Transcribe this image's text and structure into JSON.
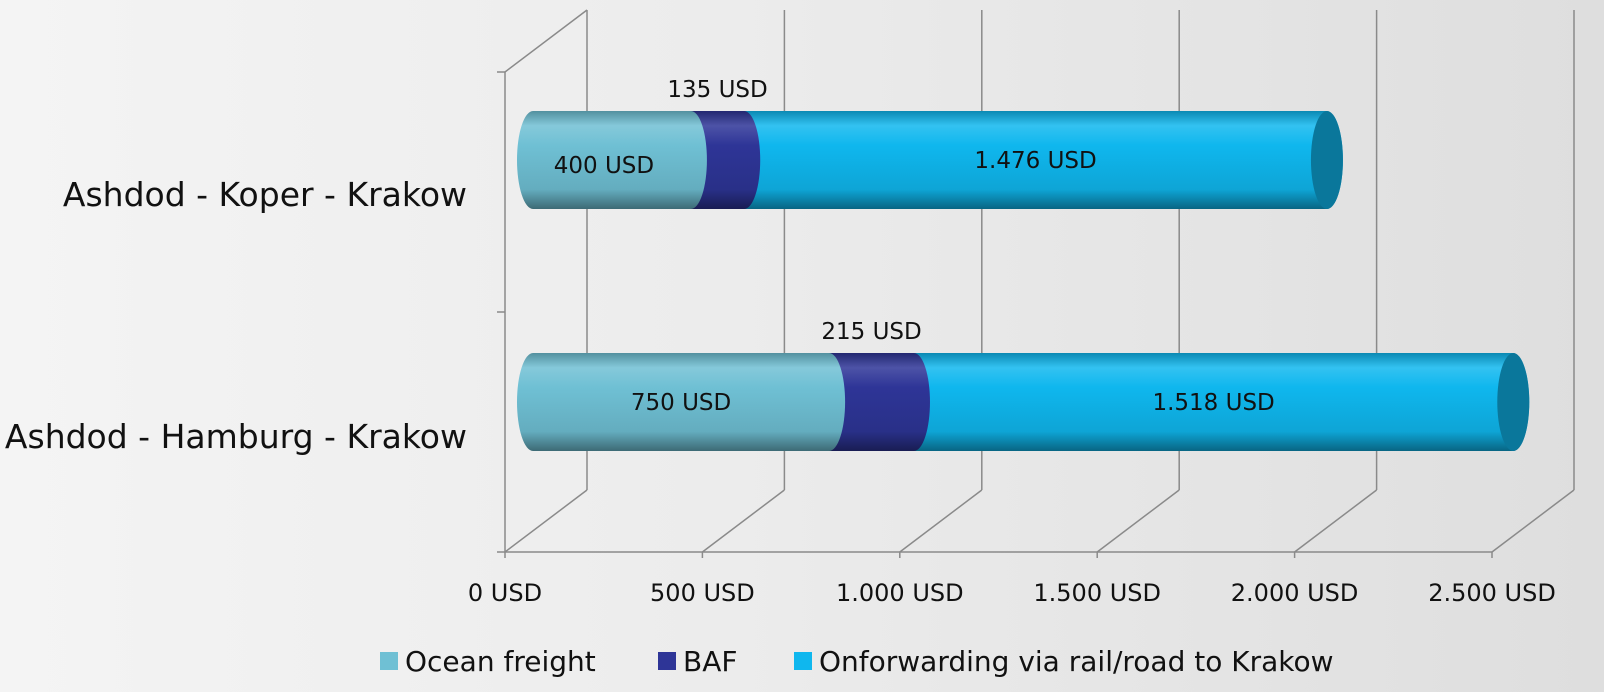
{
  "chart_data": {
    "type": "bar",
    "orientation": "horizontal",
    "stacked": true,
    "style": "3d-cylinder",
    "categories": [
      "Ashdod - Koper - Krakow",
      "Ashdod - Hamburg - Krakow"
    ],
    "series": [
      {
        "name": "Ocean freight",
        "values": [
          400,
          750
        ],
        "labels": [
          "400 USD",
          "750 USD"
        ],
        "color": "#6fc0d4",
        "label_position": "inside"
      },
      {
        "name": "BAF",
        "values": [
          135,
          215
        ],
        "labels": [
          "135 USD",
          "215 USD"
        ],
        "color": "#2e3597",
        "label_position": "above"
      },
      {
        "name": "Onforwarding via rail/road to Krakow",
        "values": [
          1476,
          1518
        ],
        "labels": [
          "1.476 USD",
          "1.518 USD"
        ],
        "color": "#0fb7ee",
        "label_position": "inside"
      }
    ],
    "xlim": [
      0,
      2500
    ],
    "xticks": [
      0,
      500,
      1000,
      1500,
      2000,
      2500
    ],
    "xtick_labels": [
      "0 USD",
      "500 USD",
      "1.000 USD",
      "1.500 USD",
      "2.000 USD",
      "2.500 USD"
    ],
    "title": "",
    "xlabel": "",
    "ylabel": "",
    "grid": true,
    "legend_position": "bottom"
  },
  "colors": {
    "grid": "#8a8a8a",
    "text": "#111111"
  }
}
